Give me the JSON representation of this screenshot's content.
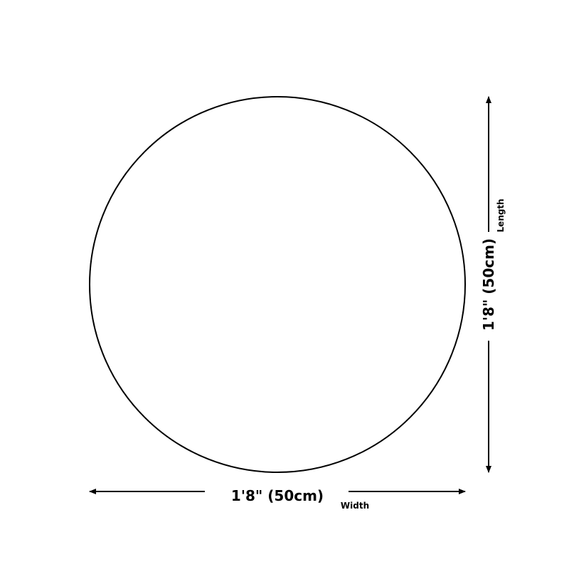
{
  "diagram": {
    "shape": "circle",
    "stroke_color": "#000000",
    "width": {
      "value": "1'8\" (50cm)",
      "label": "Width"
    },
    "length": {
      "value": "1'8\" (50cm)",
      "label": "Length"
    }
  }
}
